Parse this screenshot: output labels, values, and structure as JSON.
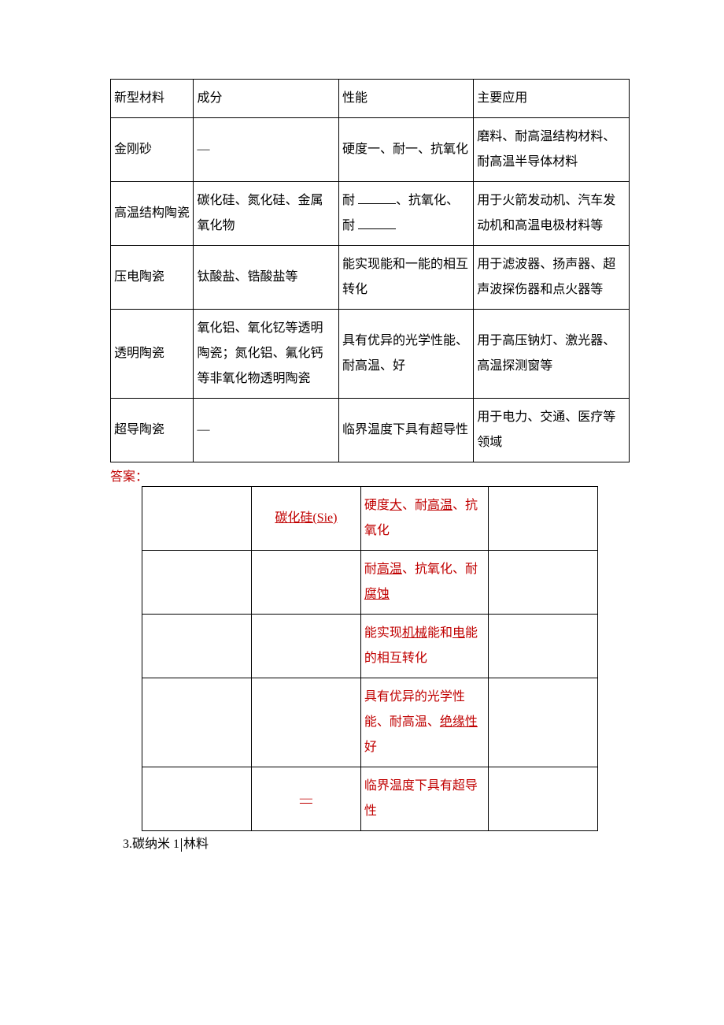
{
  "colors": {
    "text": "#000000",
    "answer": "#c00000",
    "border": "#000000",
    "background": "#ffffff"
  },
  "typography": {
    "font_family": "SimSun",
    "font_size_pt": 12,
    "line_height": 2.0
  },
  "main_table": {
    "type": "table",
    "column_widths_pct": [
      16,
      28,
      26,
      30
    ],
    "header": [
      "新型材料",
      "成分",
      "性能",
      "主要应用"
    ],
    "rows": [
      {
        "c1": "金刚砂",
        "c2": "—",
        "c3": "硬度一、耐一、抗氧化",
        "c4": "磨料、耐高温结构材料、耐高温半导体材料"
      },
      {
        "c1": "高温结构陶瓷",
        "c2": "碳化硅、氮化硅、金属氧化物",
        "c3_pre": "耐 ",
        "c3_mid": "、抗氧化、耐 ",
        "c3_post": "",
        "c4": "用于火箭发动机、汽车发动机和高温电极材料等"
      },
      {
        "c1": "压电陶瓷",
        "c2": "钛酸盐、锆酸盐等",
        "c3": "能实现能和一能的相互转化",
        "c4": "用于滤波器、扬声器、超声波探伤器和点火器等"
      },
      {
        "c1": "透明陶瓷",
        "c2": "氧化铝、氧化钇等透明陶瓷；氮化铝、氟化钙等非氧化物透明陶瓷",
        "c3": "具有优异的光学性能、耐高温、好",
        "c4": "用于高压钠灯、激光器、高温探测窗等"
      },
      {
        "c1": "超导陶瓷",
        "c2": "—",
        "c3": "临界温度下具有超导性",
        "c4": "用于电力、交通、医疗等领域"
      }
    ]
  },
  "answer_label": "答案：",
  "answer_table": {
    "type": "table",
    "column_widths_pct": [
      24,
      24,
      28,
      24
    ],
    "rows": [
      {
        "c1": "",
        "c2_under": "碳化硅(Sie)",
        "c3_a": "硬度",
        "c3_b_u": "大",
        "c3_c": "、耐",
        "c3_d_u": "高温",
        "c3_e": "、抗氧化",
        "c4": ""
      },
      {
        "c1": "",
        "c2": "",
        "c3_a": "耐",
        "c3_b_u": "高温",
        "c3_c": "、抗氧化、耐",
        "c3_d_u": "腐蚀",
        "c4": ""
      },
      {
        "c1": "",
        "c2": "",
        "c3_a": "能实现",
        "c3_b_u": "机械",
        "c3_c": "能和",
        "c3_d_u": "电",
        "c3_e": "能的相互转化",
        "c4": ""
      },
      {
        "c1": "",
        "c2": "",
        "c3_a": "具有优异的光学性能、耐高温、",
        "c3_b_u": "绝缘性",
        "c3_c": "好",
        "c4": ""
      },
      {
        "c1": "",
        "c2_under": "—",
        "c3": "临界温度下具有超导性",
        "c4": ""
      }
    ]
  },
  "footer": {
    "prefix": "3.碳纳米 1",
    "suffix": "林料"
  }
}
